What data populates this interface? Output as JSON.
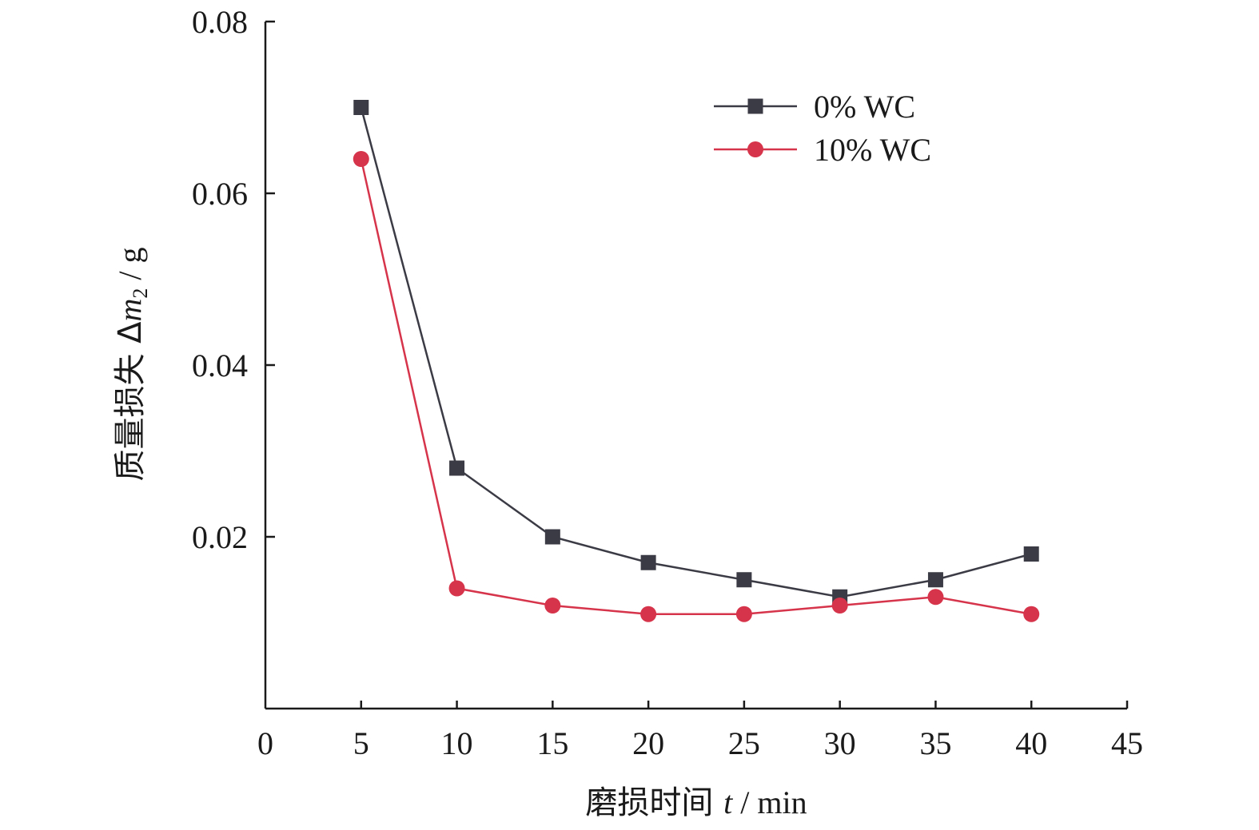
{
  "chart_data": {
    "type": "line",
    "title": "",
    "xlabel": {
      "prefix": "磨损时间 ",
      "var": "t",
      "unit": " / min"
    },
    "ylabel": {
      "prefix": "质量损失 Δ",
      "var": "m",
      "sub": "2",
      "unit": " / g"
    },
    "xlim": [
      0,
      45
    ],
    "ylim": [
      0,
      0.08
    ],
    "xticks": [
      0,
      5,
      10,
      15,
      20,
      25,
      30,
      35,
      40,
      45
    ],
    "xtick_labels": [
      "0",
      "5",
      "10",
      "15",
      "20",
      "25",
      "30",
      "35",
      "40",
      "45"
    ],
    "yticks": [
      0.02,
      0.04,
      0.06,
      0.08
    ],
    "ytick_labels": [
      "0.02",
      "0.04",
      "0.06",
      "0.08"
    ],
    "grid": false,
    "legend_position": "top-right",
    "x": [
      5,
      10,
      15,
      20,
      25,
      30,
      35,
      40
    ],
    "series": [
      {
        "name": "0% WC",
        "marker": "square",
        "color": "#3b3b45",
        "values": [
          0.07,
          0.028,
          0.02,
          0.017,
          0.015,
          0.013,
          0.015,
          0.018
        ]
      },
      {
        "name": "10% WC",
        "marker": "circle",
        "color": "#d6344a",
        "values": [
          0.064,
          0.014,
          0.012,
          0.011,
          0.011,
          0.012,
          0.013,
          0.011
        ]
      }
    ]
  }
}
